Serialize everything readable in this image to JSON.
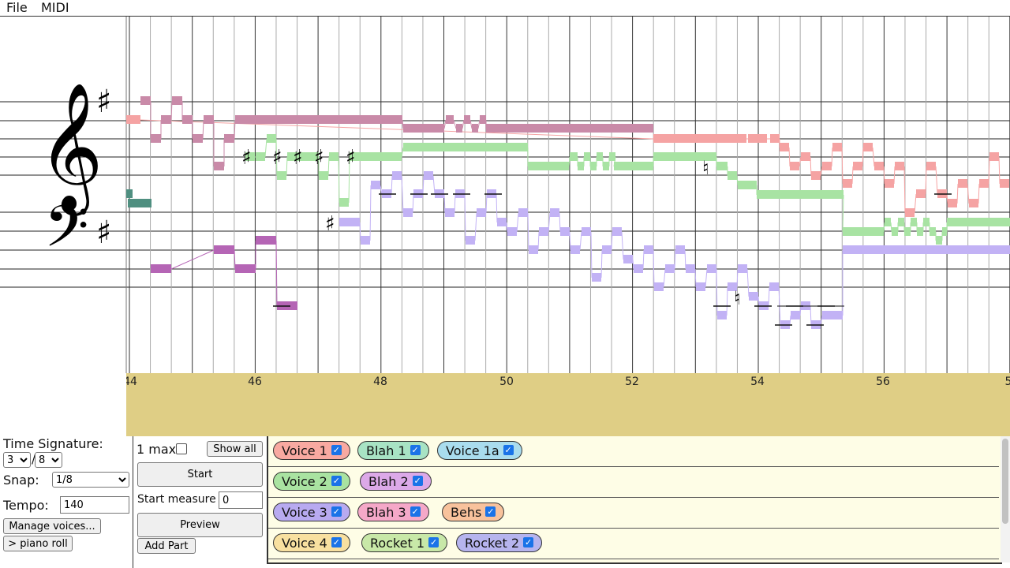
{
  "menu": {
    "file": "File",
    "midi": "MIDI"
  },
  "score": {
    "key_signature": "F# (one sharp)",
    "accidental_sharp": "♯",
    "accidental_natural": "♮",
    "colors": {
      "voice1": "#f5a3a3",
      "blah1": "#c98aa8",
      "voice2": "#a8e3a3",
      "blah2": "#b565b5",
      "voice3": "#c2b2f5",
      "voice4": "#4f8f80"
    }
  },
  "ruler": {
    "measure_labels": [
      "44",
      "46",
      "48",
      "50",
      "52",
      "54",
      "56",
      "5"
    ]
  },
  "controls": {
    "time_signature_label": "Time Signature:",
    "ts_numerator": "3",
    "ts_denominator": "8",
    "snap_label": "Snap:",
    "snap_value": "1/8",
    "tempo_label": "Tempo:",
    "tempo_value": "140",
    "manage_voices": "Manage voices...",
    "piano_roll": "> piano roll"
  },
  "playback": {
    "one_max": "1 max",
    "show_all": "Show all",
    "start": "Start",
    "start_measure_label": "Start measure",
    "start_measure_value": "0",
    "preview": "Preview",
    "add_part": "Add Part"
  },
  "voices": [
    [
      {
        "label": "Voice 1",
        "color": "#f8a9a1"
      },
      {
        "label": "Blah 1",
        "color": "#a8e3c4"
      },
      {
        "label": "Voice 1a",
        "color": "#a9dcee"
      }
    ],
    [
      {
        "label": "Voice 2",
        "color": "#a9e3a1"
      },
      {
        "label": "Blah 2",
        "color": "#dca9e8"
      }
    ],
    [
      {
        "label": "Voice 3",
        "color": "#b8aaf0"
      },
      {
        "label": "Blah 3",
        "color": "#f5a8c8"
      },
      {
        "label": "Behs",
        "color": "#f8c29c"
      }
    ],
    [
      {
        "label": "Voice 4",
        "color": "#f8e0a0"
      },
      {
        "label": "Rocket 1",
        "color": "#c8e8a8"
      },
      {
        "label": "Rocket 2",
        "color": "#b6b4ee"
      }
    ]
  ]
}
